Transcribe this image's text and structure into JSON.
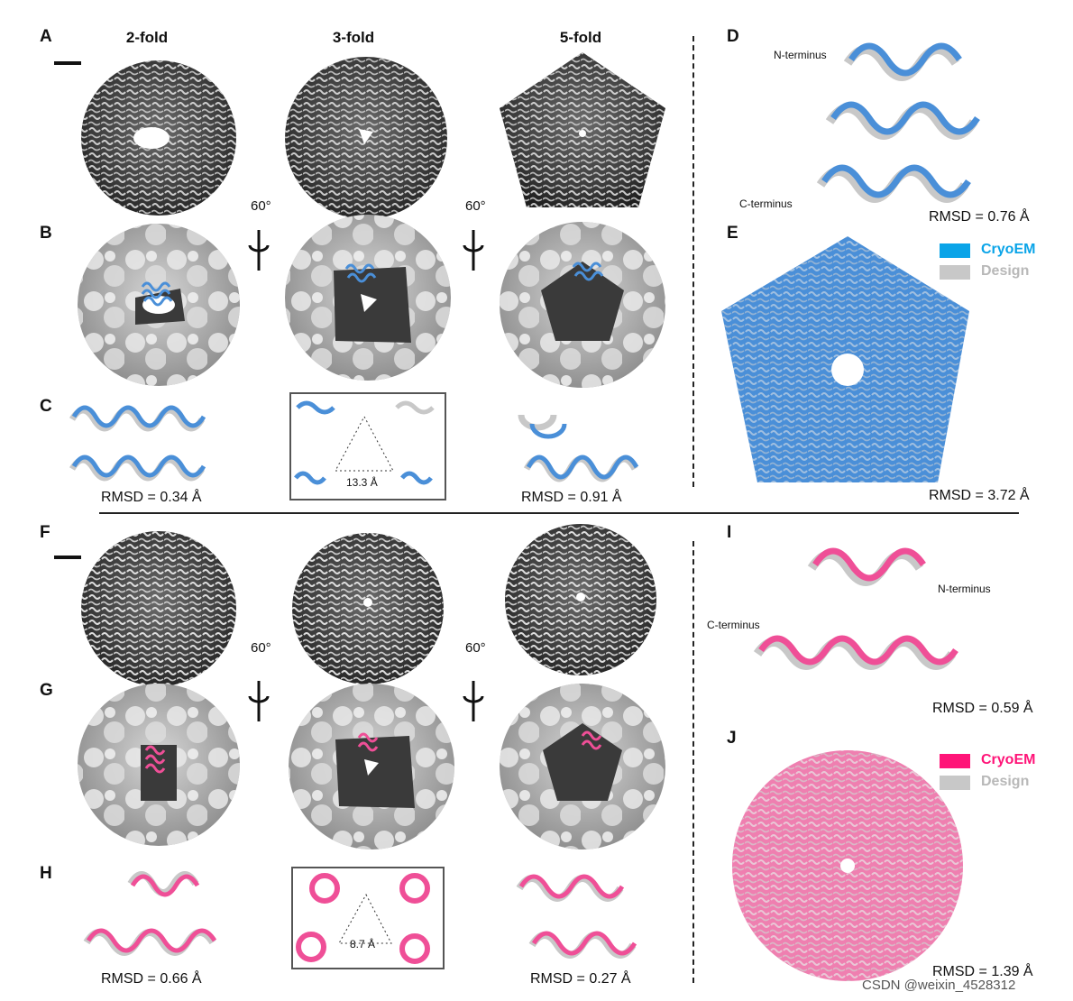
{
  "panel_labels": {
    "A": "A",
    "B": "B",
    "C": "C",
    "D": "D",
    "E": "E",
    "F": "F",
    "G": "G",
    "H": "H",
    "I": "I",
    "J": "J"
  },
  "column_headers": [
    "2-fold",
    "3-fold",
    "5-fold"
  ],
  "rotation_angle": "60°",
  "top": {
    "rmsd_c_left": "RMSD = 0.34 Å",
    "distance_c_mid": "13.3 Å",
    "rmsd_c_right": "RMSD = 0.91 Å",
    "d_n_terminus": "N-terminus",
    "d_c_terminus": "C-terminus",
    "rmsd_d": "RMSD = 0.76 Å",
    "rmsd_e": "RMSD = 3.72 Å",
    "legend_cryoem": "CryoEM",
    "legend_design": "Design"
  },
  "bottom": {
    "rmsd_h_left": "RMSD = 0.66 Å",
    "distance_h_mid": "8.7 Å",
    "rmsd_h_right": "RMSD = 0.27 Å",
    "i_n_terminus": "N-terminus",
    "i_c_terminus": "C-terminus",
    "rmsd_i": "RMSD = 0.59 Å",
    "rmsd_j": "RMSD = 1.39 Å",
    "legend_cryoem": "CryoEM",
    "legend_design": "Design"
  },
  "colors": {
    "blue": "#4a8fd8",
    "cyan_legend": "#0aa4e8",
    "pink": "#ef4f97",
    "pink_legend": "#ff1478",
    "gray": "#c8c8c8",
    "dark": "#3a3a3a"
  },
  "watermark": "CSDN @weixin_4528312"
}
